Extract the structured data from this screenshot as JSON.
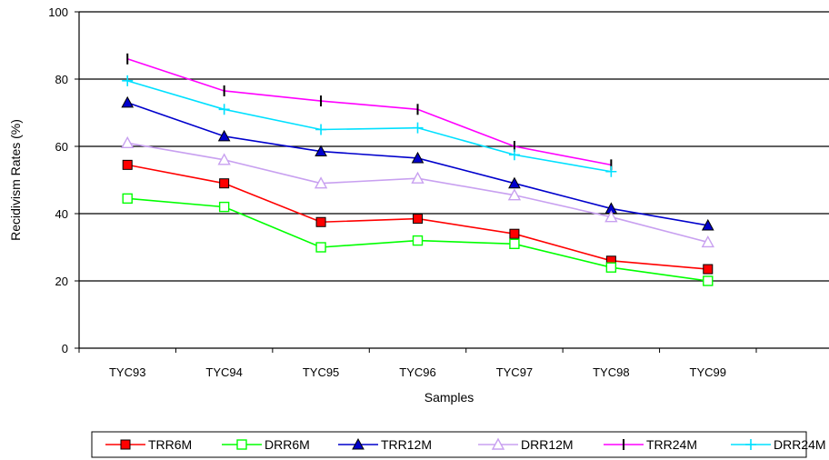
{
  "chart_data": {
    "type": "line",
    "title": "",
    "xlabel": "Samples",
    "ylabel": "Recidivism Rates (%)",
    "ylim": [
      0,
      100
    ],
    "yticks": [
      0,
      20,
      40,
      60,
      80,
      100
    ],
    "grid": "horizontal major gridlines",
    "legend_position": "bottom",
    "categories": [
      "TYC93",
      "TYC94",
      "TYC95",
      "TYC96",
      "TYC97",
      "TYC98",
      "TYC99"
    ],
    "series": [
      {
        "name": "TRR6M",
        "color": "#ff0000",
        "marker": "square-filled",
        "values": [
          54.5,
          49.0,
          37.5,
          38.5,
          34.0,
          26.0,
          23.5
        ]
      },
      {
        "name": "DRR6M",
        "color": "#00ff00",
        "marker": "square-open",
        "values": [
          44.5,
          42.0,
          30.0,
          32.0,
          31.0,
          24.0,
          20.0
        ]
      },
      {
        "name": "TRR12M",
        "color": "#0000cc",
        "marker": "triangle-filled",
        "values": [
          73.0,
          63.0,
          58.5,
          56.5,
          49.0,
          41.5,
          36.5
        ]
      },
      {
        "name": "DRR12M",
        "color": "#c8a0f0",
        "marker": "triangle-open",
        "values": [
          61.0,
          56.0,
          49.0,
          50.5,
          45.5,
          39.0,
          31.5
        ]
      },
      {
        "name": "TRR24M",
        "color": "#ff00ff",
        "marker": "vbar",
        "values": [
          86.0,
          76.5,
          73.5,
          71.0,
          60.0,
          54.5,
          null
        ]
      },
      {
        "name": "DRR24M",
        "color": "#00e0ff",
        "marker": "plus",
        "values": [
          79.5,
          71.0,
          65.0,
          65.5,
          57.5,
          52.5,
          null
        ]
      }
    ]
  }
}
